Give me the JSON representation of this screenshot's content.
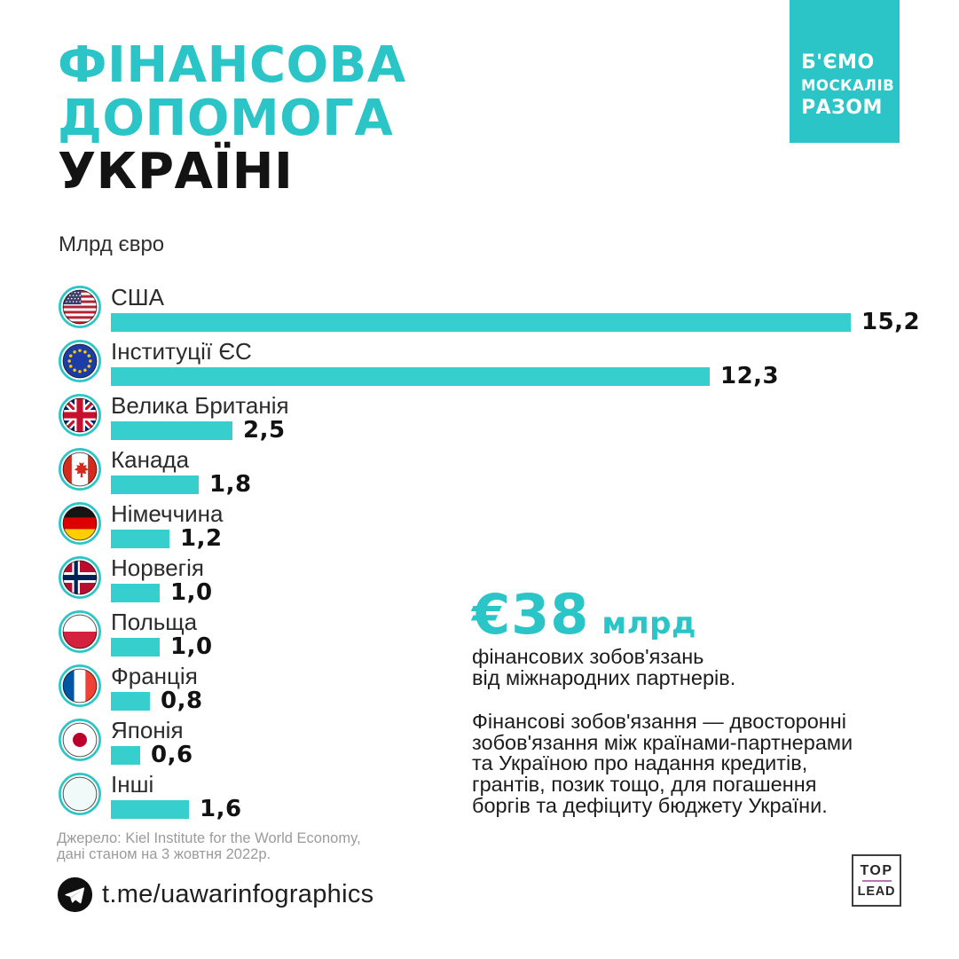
{
  "page": {
    "accent_color": "#2CC5C7",
    "bar_color": "#37CECE",
    "badge_color": "#2CC5C7",
    "toplead_divider_color": "#B678AE",
    "background": "#FFFFFF"
  },
  "header": {
    "title_line1": "ФІНАНСОВА",
    "title_line2": "ДОПОМОГА",
    "title_line3": "УКРАЇНІ",
    "units_label": "Млрд євро",
    "badge_lines": [
      "Б'ЄМО",
      "МОСКАЛІВ",
      "РАЗОМ"
    ]
  },
  "chart_data": {
    "type": "bar",
    "orientation": "horizontal",
    "title": "Фінансова допомога Україні",
    "xlabel": "Млрд євро",
    "ylabel": "",
    "xlim": [
      0,
      15.2
    ],
    "grid": false,
    "legend": false,
    "categories": [
      "США",
      "Інституції ЄС",
      "Велика Британія",
      "Канада",
      "Німеччина",
      "Норвегія",
      "Польща",
      "Франція",
      "Японія",
      "Інші"
    ],
    "values": [
      15.2,
      12.3,
      2.5,
      1.8,
      1.2,
      1.0,
      1.0,
      0.8,
      0.6,
      1.6
    ],
    "value_labels": [
      "15,2",
      "12,3",
      "2,5",
      "1,8",
      "1,2",
      "1,0",
      "1,0",
      "0,8",
      "0,6",
      "1,6"
    ],
    "flag_icons": [
      "flag-usa",
      "flag-eu",
      "flag-uk",
      "flag-canada",
      "flag-germany",
      "flag-norway",
      "flag-poland",
      "flag-france",
      "flag-japan",
      "flag-others"
    ]
  },
  "callout": {
    "amount": "€38",
    "amount_unit": "млрд",
    "subtitle_lines": [
      "фінансових зобов'язань",
      "від міжнародних партнерів."
    ],
    "paragraph_lines": [
      "Фінансові зобов'язання — двосторонні",
      "зобов'язання між країнами-партнерами",
      "та Україною про надання кредитів,",
      "грантів, позик тощо, для погашення",
      "боргів та дефіциту бюджету України."
    ]
  },
  "source": {
    "line1": "Джерело: Kiel Institute for the World Economy,",
    "line2": "дані станом на 3 жовтня 2022р."
  },
  "footer": {
    "telegram_handle": "t.me/uawarinfographics",
    "logo_top": "TOP",
    "logo_bottom": "LEAD"
  }
}
